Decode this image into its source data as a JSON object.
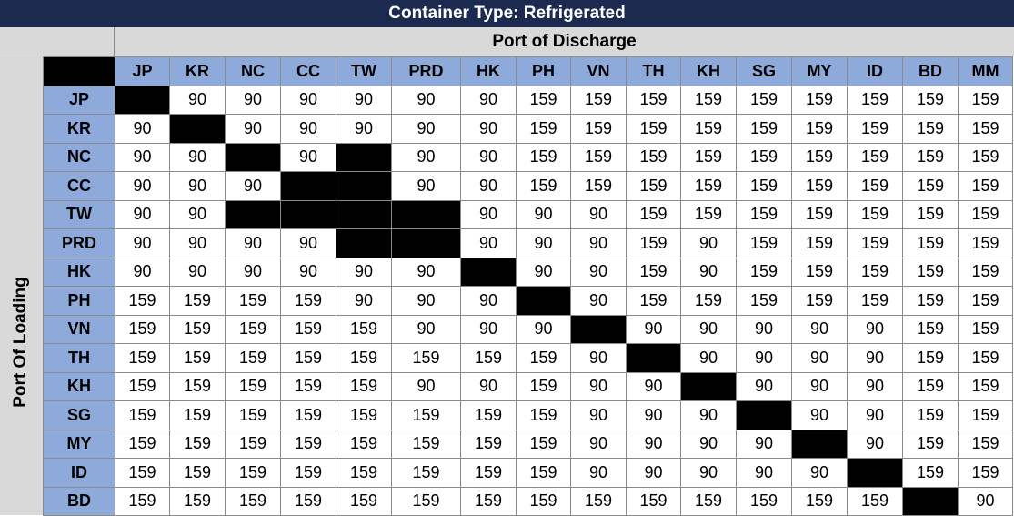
{
  "title": "Container Type: Refrigerated",
  "discharge_label": "Port of Discharge",
  "loading_label": "Port Of Loading",
  "colors": {
    "title_bg": "#1b2a4e",
    "header_bg": "#8eaadb",
    "panel_bg": "#d9d9d9",
    "blocked": "#000000"
  },
  "columns": [
    "JP",
    "KR",
    "NC",
    "CC",
    "TW",
    "PRD",
    "HK",
    "PH",
    "VN",
    "TH",
    "KH",
    "SG",
    "MY",
    "ID",
    "BD",
    "MM"
  ],
  "rows": [
    {
      "port": "JP",
      "values": [
        null,
        "90",
        "90",
        "90",
        "90",
        "90",
        "90",
        "159",
        "159",
        "159",
        "159",
        "159",
        "159",
        "159",
        "159",
        "159"
      ]
    },
    {
      "port": "KR",
      "values": [
        "90",
        null,
        "90",
        "90",
        "90",
        "90",
        "90",
        "159",
        "159",
        "159",
        "159",
        "159",
        "159",
        "159",
        "159",
        "159"
      ]
    },
    {
      "port": "NC",
      "values": [
        "90",
        "90",
        null,
        "90",
        null,
        "90",
        "90",
        "159",
        "159",
        "159",
        "159",
        "159",
        "159",
        "159",
        "159",
        "159"
      ]
    },
    {
      "port": "CC",
      "values": [
        "90",
        "90",
        "90",
        null,
        null,
        "90",
        "90",
        "159",
        "159",
        "159",
        "159",
        "159",
        "159",
        "159",
        "159",
        "159"
      ]
    },
    {
      "port": "TW",
      "values": [
        "90",
        "90",
        null,
        null,
        null,
        null,
        "90",
        "90",
        "90",
        "159",
        "159",
        "159",
        "159",
        "159",
        "159",
        "159"
      ]
    },
    {
      "port": "PRD",
      "values": [
        "90",
        "90",
        "90",
        "90",
        null,
        null,
        "90",
        "90",
        "90",
        "159",
        "90",
        "159",
        "159",
        "159",
        "159",
        "159"
      ]
    },
    {
      "port": "HK",
      "values": [
        "90",
        "90",
        "90",
        "90",
        "90",
        "90",
        null,
        "90",
        "90",
        "159",
        "90",
        "159",
        "159",
        "159",
        "159",
        "159"
      ]
    },
    {
      "port": "PH",
      "values": [
        "159",
        "159",
        "159",
        "159",
        "90",
        "90",
        "90",
        null,
        "90",
        "159",
        "159",
        "159",
        "159",
        "159",
        "159",
        "159"
      ]
    },
    {
      "port": "VN",
      "values": [
        "159",
        "159",
        "159",
        "159",
        "159",
        "90",
        "90",
        "90",
        null,
        "90",
        "90",
        "90",
        "90",
        "90",
        "159",
        "159"
      ]
    },
    {
      "port": "TH",
      "values": [
        "159",
        "159",
        "159",
        "159",
        "159",
        "159",
        "159",
        "159",
        "90",
        null,
        "90",
        "90",
        "90",
        "90",
        "159",
        "159"
      ]
    },
    {
      "port": "KH",
      "values": [
        "159",
        "159",
        "159",
        "159",
        "159",
        "90",
        "90",
        "159",
        "90",
        "90",
        null,
        "90",
        "90",
        "90",
        "159",
        "159"
      ]
    },
    {
      "port": "SG",
      "values": [
        "159",
        "159",
        "159",
        "159",
        "159",
        "159",
        "159",
        "159",
        "90",
        "90",
        "90",
        null,
        "90",
        "90",
        "159",
        "159"
      ]
    },
    {
      "port": "MY",
      "values": [
        "159",
        "159",
        "159",
        "159",
        "159",
        "159",
        "159",
        "159",
        "90",
        "90",
        "90",
        "90",
        null,
        "90",
        "159",
        "159"
      ]
    },
    {
      "port": "ID",
      "values": [
        "159",
        "159",
        "159",
        "159",
        "159",
        "159",
        "159",
        "159",
        "90",
        "90",
        "90",
        "90",
        "90",
        null,
        "159",
        "159"
      ]
    },
    {
      "port": "BD",
      "values": [
        "159",
        "159",
        "159",
        "159",
        "159",
        "159",
        "159",
        "159",
        "159",
        "159",
        "159",
        "159",
        "159",
        "159",
        null,
        "90"
      ]
    }
  ]
}
